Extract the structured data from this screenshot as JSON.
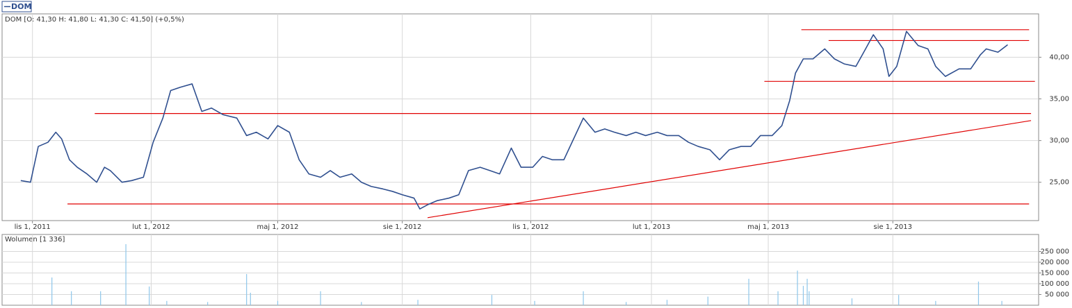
{
  "chart_data": [
    {
      "type": "line",
      "subtitle": "DOM [O: 41,30  H: 41,80  L: 41,30  C: 41,50] (+0,5%)",
      "xlim": [
        -9.6,
        522.9
      ],
      "xticks": [
        {
          "value": 6,
          "label": "lis 1, 2011"
        },
        {
          "value": 67,
          "label": "lut 1, 2012"
        },
        {
          "value": 132,
          "label": "maj 1, 2012"
        },
        {
          "value": 196,
          "label": "sie 1, 2012"
        },
        {
          "value": 262,
          "label": "lis 1, 2012"
        },
        {
          "value": 324,
          "label": "lut 1, 2013"
        },
        {
          "value": 384,
          "label": "maj 1, 2013"
        },
        {
          "value": 448,
          "label": "sie 1, 2013"
        }
      ],
      "ylim": [
        20.4,
        45.2
      ],
      "yticks": [
        {
          "value": 25,
          "label": "25,00"
        },
        {
          "value": 30,
          "label": "30,00"
        },
        {
          "value": 35,
          "label": "35,00"
        },
        {
          "value": 40,
          "label": "40,00"
        }
      ],
      "grid": true,
      "series": [
        {
          "name": "DOM",
          "color": "#2f4f8f",
          "x": [
            0,
            5,
            9,
            14,
            18,
            21,
            25,
            29,
            34,
            39,
            43,
            46,
            52,
            57,
            63,
            68,
            73,
            77,
            82,
            88,
            93,
            98,
            104,
            111,
            116,
            121,
            127,
            132,
            138,
            143,
            148,
            154,
            159,
            164,
            170,
            175,
            180,
            186,
            191,
            196,
            202,
            205,
            209,
            214,
            220,
            225,
            230,
            236,
            241,
            246,
            252,
            257,
            263,
            268,
            273,
            279,
            284,
            289,
            295,
            300,
            305,
            311,
            316,
            321,
            327,
            332,
            338,
            343,
            348,
            354,
            359,
            364,
            370,
            375,
            380,
            386,
            391,
            395,
            398,
            402,
            407,
            413,
            418,
            423,
            429,
            434,
            438,
            443,
            446,
            450,
            455,
            461,
            466,
            470,
            475,
            482,
            488,
            493,
            496,
            502,
            507
          ],
          "values": [
            25.2,
            25.0,
            29.3,
            29.8,
            31.0,
            30.2,
            27.7,
            26.8,
            26.0,
            25.0,
            26.8,
            26.4,
            25.0,
            25.2,
            25.6,
            29.8,
            32.7,
            36.0,
            36.4,
            36.8,
            33.5,
            33.9,
            33.1,
            32.7,
            30.6,
            31.0,
            30.2,
            31.8,
            31.0,
            27.7,
            26.0,
            25.6,
            26.4,
            25.6,
            26.0,
            25.0,
            24.5,
            24.2,
            23.9,
            23.5,
            23.1,
            21.8,
            22.3,
            22.8,
            23.1,
            23.5,
            26.4,
            26.8,
            26.4,
            26.0,
            29.1,
            26.8,
            26.8,
            28.1,
            27.7,
            27.7,
            30.2,
            32.7,
            31.0,
            31.4,
            31.0,
            30.6,
            31.0,
            30.6,
            31.0,
            30.6,
            30.6,
            29.8,
            29.3,
            28.9,
            27.7,
            28.9,
            29.3,
            29.3,
            30.6,
            30.6,
            31.8,
            34.8,
            38.1,
            39.8,
            39.8,
            41.0,
            39.8,
            39.2,
            38.9,
            41.0,
            42.7,
            41.0,
            37.7,
            38.9,
            43.1,
            41.4,
            41.0,
            38.9,
            37.7,
            38.6,
            38.6,
            40.3,
            41.0,
            40.6,
            41.5
          ]
        }
      ],
      "lines": [
        {
          "color": "#e00000",
          "x": [
            401,
            518
          ],
          "y": [
            43.3,
            43.3
          ]
        },
        {
          "color": "#e00000",
          "x": [
            415,
            518
          ],
          "y": [
            42.0,
            42.0
          ]
        },
        {
          "color": "#e00000",
          "x": [
            382,
            521
          ],
          "y": [
            37.1,
            37.1
          ]
        },
        {
          "color": "#e00000",
          "x": [
            38,
            519
          ],
          "y": [
            33.25,
            33.25
          ]
        },
        {
          "color": "#e00000",
          "x": [
            24,
            518
          ],
          "y": [
            22.4,
            22.4
          ]
        },
        {
          "color": "#e00000",
          "x": [
            209,
            519
          ],
          "y": [
            20.75,
            32.4
          ]
        }
      ]
    },
    {
      "type": "bar",
      "title": "Wolumen [1 336]",
      "color": "#8ec6ea",
      "xlim": [
        -9.6,
        522.9
      ],
      "ylim": [
        0,
        329000
      ],
      "yticks": [
        {
          "value": 50000,
          "label": "50 000"
        },
        {
          "value": 100000,
          "label": "100 000"
        },
        {
          "value": 150000,
          "label": "150 000"
        },
        {
          "value": 200000,
          "label": "200 000"
        },
        {
          "value": 250000,
          "label": "250 000"
        }
      ],
      "grid": true,
      "x": [
        16,
        26,
        41,
        54,
        66,
        75,
        96,
        116,
        118,
        132,
        154,
        175,
        204,
        242,
        264,
        289,
        311,
        332,
        353,
        374,
        389,
        399,
        402,
        404,
        405,
        427,
        451,
        470,
        492,
        504
      ],
      "values": [
        129000,
        65000,
        65000,
        284000,
        87000,
        20000,
        15000,
        145000,
        58000,
        20000,
        65000,
        15000,
        25000,
        48000,
        20000,
        65000,
        15000,
        25000,
        40000,
        123000,
        65000,
        161000,
        90000,
        123000,
        65000,
        32000,
        48000,
        20000,
        110000,
        20000
      ]
    }
  ]
}
